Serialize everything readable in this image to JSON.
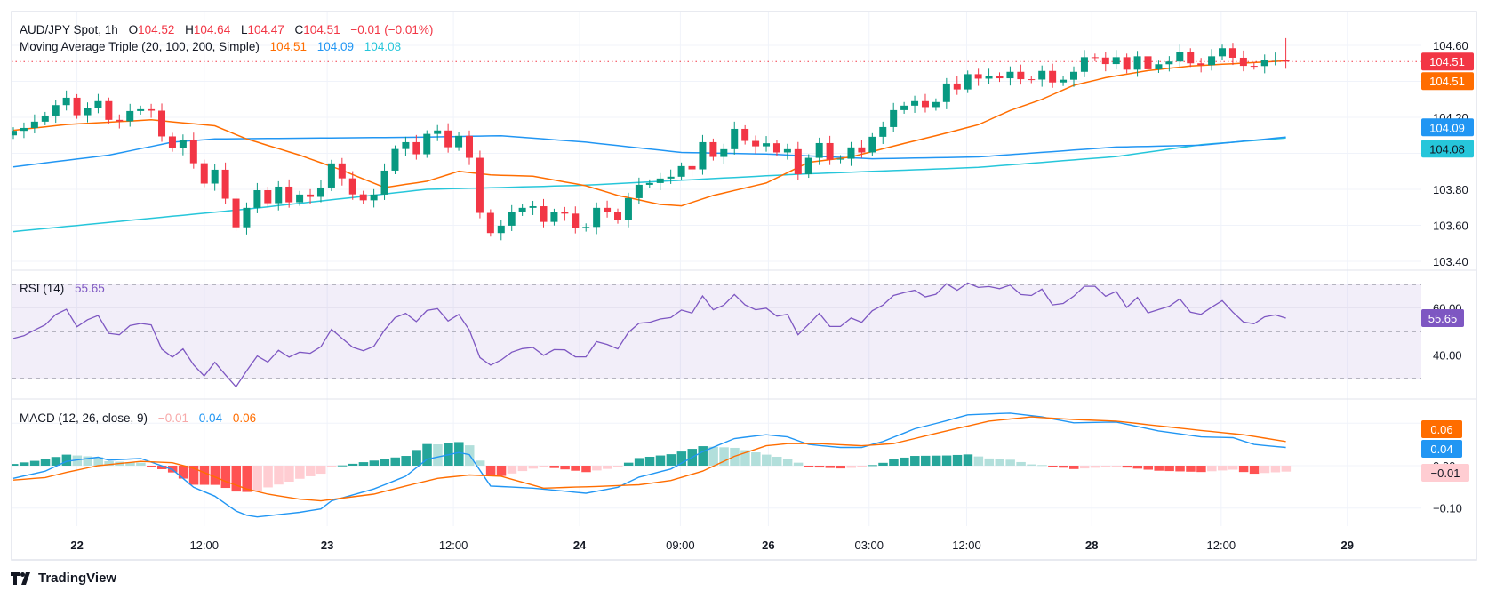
{
  "header": {
    "symbol": "AUD/JPY Spot, 1h",
    "ohlc": [
      {
        "k": "O",
        "v": "104.52"
      },
      {
        "k": "H",
        "v": "104.64"
      },
      {
        "k": "L",
        "v": "104.47"
      },
      {
        "k": "C",
        "v": "104.51"
      }
    ],
    "change": "−0.01 (−0.01%)"
  },
  "ma_legend": {
    "label": "Moving Average Triple (20, 100, 200, Simple)",
    "ma20": "104.51",
    "ma100": "104.09",
    "ma200": "104.08"
  },
  "rsi_legend": {
    "label": "RSI (14)",
    "value": "55.65"
  },
  "macd_legend": {
    "label": "MACD (12, 26, close, 9)",
    "hist": "−0.01",
    "macd": "0.04",
    "signal": "0.06"
  },
  "branding": {
    "name": "TradingView"
  },
  "colors": {
    "up": "#089981",
    "down": "#F23645",
    "ma20": "#FF6D00",
    "ma100": "#2196F3",
    "ma200": "#26C6DA",
    "rsi": "#7E57C2",
    "macd": "#2196F3",
    "signal": "#FF6D00"
  },
  "chart_data": {
    "type": "candlestick",
    "title": "AUD/JPY Spot, 1h",
    "price_ticks": [
      "104.60",
      "104.20",
      "103.80",
      "103.60",
      "103.40"
    ],
    "price_grid": [
      104.6,
      104.4,
      104.2,
      104.0,
      103.8,
      103.6,
      103.4
    ],
    "ylim": [
      103.4,
      104.6
    ],
    "time_labels": [
      {
        "label": "22",
        "at": 6.0,
        "bold": true
      },
      {
        "label": "12:00",
        "at": 18.0
      },
      {
        "label": "23",
        "at": 29.6,
        "bold": true
      },
      {
        "label": "12:00",
        "at": 41.5
      },
      {
        "label": "24",
        "at": 53.4,
        "bold": true
      },
      {
        "label": "09:00",
        "at": 62.9
      },
      {
        "label": "26",
        "at": 71.2,
        "bold": true
      },
      {
        "label": "03:00",
        "at": 80.7
      },
      {
        "label": "12:00",
        "at": 89.9
      },
      {
        "label": "28",
        "at": 101.7,
        "bold": true
      },
      {
        "label": "12:00",
        "at": 113.9
      },
      {
        "label": "29",
        "at": 125.8,
        "bold": true
      }
    ],
    "first_open": 104.1,
    "last_high": 104.64,
    "last_low": 104.47,
    "closes": [
      104.125,
      104.141,
      104.176,
      104.21,
      104.268,
      104.309,
      104.212,
      104.253,
      104.29,
      104.186,
      104.178,
      104.235,
      104.245,
      104.237,
      104.094,
      104.029,
      104.075,
      103.945,
      103.832,
      103.909,
      103.748,
      103.589,
      103.697,
      103.795,
      103.723,
      103.815,
      103.728,
      103.771,
      103.758,
      103.81,
      103.944,
      103.861,
      103.772,
      103.739,
      103.771,
      103.904,
      104.024,
      104.062,
      103.995,
      104.108,
      104.127,
      104.034,
      104.097,
      103.975,
      103.669,
      103.557,
      103.598,
      103.672,
      103.697,
      103.706,
      103.619,
      103.672,
      103.665,
      103.585,
      103.591,
      103.697,
      103.673,
      103.629,
      103.751,
      103.825,
      103.835,
      103.86,
      103.87,
      103.929,
      103.911,
      104.062,
      103.98,
      104.023,
      104.136,
      104.069,
      104.039,
      104.056,
      104.005,
      104.023,
      103.884,
      103.975,
      104.057,
      103.965,
      103.97,
      104.033,
      104.005,
      104.092,
      104.146,
      104.24,
      104.265,
      104.29,
      104.257,
      104.285,
      104.388,
      104.355,
      104.44,
      104.415,
      104.43,
      104.417,
      104.453,
      104.412,
      104.41,
      104.458,
      104.394,
      104.409,
      104.453,
      104.534,
      104.532,
      104.496,
      104.534,
      104.465,
      104.539,
      104.467,
      104.495,
      104.51,
      104.564,
      104.5,
      104.49,
      104.539,
      104.584,
      104.531,
      104.486,
      104.485,
      104.519,
      104.52,
      104.51
    ],
    "ma20_points": [
      [
        1,
        104.128
      ],
      [
        6,
        104.16
      ],
      [
        14,
        104.186
      ],
      [
        20,
        104.153
      ],
      [
        23,
        104.08
      ],
      [
        28,
        103.99
      ],
      [
        32,
        103.906
      ],
      [
        36,
        103.81
      ],
      [
        40,
        103.845
      ],
      [
        43,
        103.9
      ],
      [
        46,
        103.88
      ],
      [
        50,
        103.873
      ],
      [
        55,
        103.82
      ],
      [
        58,
        103.766
      ],
      [
        62,
        103.716
      ],
      [
        64,
        103.708
      ],
      [
        67,
        103.766
      ],
      [
        72,
        103.835
      ],
      [
        76,
        103.95
      ],
      [
        80,
        103.98
      ],
      [
        84,
        104.04
      ],
      [
        89,
        104.113
      ],
      [
        92,
        104.159
      ],
      [
        95,
        104.238
      ],
      [
        98,
        104.3
      ],
      [
        101,
        104.378
      ],
      [
        104,
        104.42
      ],
      [
        108,
        104.46
      ],
      [
        112,
        104.485
      ],
      [
        116,
        104.498
      ],
      [
        121,
        104.514
      ]
    ],
    "ma100_points": [
      [
        1,
        103.925
      ],
      [
        10,
        103.99
      ],
      [
        16,
        104.062
      ],
      [
        20,
        104.08
      ],
      [
        30,
        104.085
      ],
      [
        40,
        104.09
      ],
      [
        47,
        104.098
      ],
      [
        55,
        104.062
      ],
      [
        64,
        104.005
      ],
      [
        72,
        103.996
      ],
      [
        82,
        103.97
      ],
      [
        92,
        103.98
      ],
      [
        105,
        104.035
      ],
      [
        113,
        104.045
      ],
      [
        121,
        104.09
      ]
    ],
    "ma200_points": [
      [
        1,
        103.565
      ],
      [
        23,
        103.69
      ],
      [
        40,
        103.8
      ],
      [
        47,
        103.81
      ],
      [
        55,
        103.823
      ],
      [
        75,
        103.884
      ],
      [
        92,
        103.922
      ],
      [
        105,
        103.982
      ],
      [
        113,
        104.048
      ],
      [
        121,
        104.085
      ]
    ],
    "price_badges": [
      {
        "label": "104.51",
        "value": 104.51,
        "color": "#F23645",
        "offset": 0
      },
      {
        "label": "104.51",
        "value": 104.51,
        "color": "#FF6D00",
        "offset": 22
      },
      {
        "label": "104.09",
        "value": 104.09,
        "color": "#2196F3",
        "offset": -11
      },
      {
        "label": "104.08",
        "value": 104.08,
        "color": "#26C6DA",
        "offset": 11,
        "dark": true
      }
    ],
    "rsi": {
      "values": [
        47.0,
        48.2,
        50.6,
        52.8,
        57.2,
        59.4,
        52.0,
        55.0,
        56.8,
        49.2,
        48.6,
        52.5,
        53.4,
        52.8,
        42.5,
        39.1,
        42.6,
        35.8,
        31.1,
        36.9,
        31.6,
        26.5,
        33.3,
        39.6,
        37.0,
        42.0,
        39.1,
        41.2,
        40.7,
        43.5,
        50.9,
        47.1,
        43.3,
        41.8,
        43.7,
        50.6,
        55.9,
        57.7,
        54.2,
        58.9,
        59.7,
        54.4,
        57.2,
        50.6,
        38.9,
        35.7,
        37.9,
        41.2,
        42.7,
        43.2,
        39.9,
        42.3,
        42.2,
        39.2,
        39.2,
        45.7,
        44.5,
        42.6,
        49.6,
        53.5,
        53.9,
        55.3,
        55.9,
        59.1,
        57.8,
        65.1,
        59.2,
        61.2,
        65.7,
        61.3,
        59.2,
        59.9,
        56.5,
        57.3,
        48.6,
        53.1,
        57.7,
        52.1,
        52.1,
        55.7,
        53.9,
        58.8,
        61.2,
        65.3,
        66.5,
        67.5,
        64.7,
        65.8,
        70.3,
        67.5,
        70.6,
        68.7,
        69.1,
        68.2,
        69.7,
        65.7,
        65.3,
        68.0,
        61.3,
        61.9,
        65.0,
        69.2,
        69.2,
        65.0,
        67.0,
        60.2,
        64.5,
        57.9,
        59.3,
        60.7,
        63.8,
        58.2,
        57.3,
        60.3,
        63.1,
        58.2,
        54.0,
        53.3,
        56.2,
        57.0,
        55.65
      ],
      "bands": [
        70,
        50,
        30
      ],
      "ticks": [
        "60.00",
        "40.00"
      ],
      "tick_values": [
        60,
        40
      ],
      "badge": "55.65"
    },
    "macd": {
      "macd_points": [
        [
          1,
          -0.03
        ],
        [
          4,
          -0.013
        ],
        [
          6,
          0.01
        ],
        [
          9,
          0.02
        ],
        [
          10,
          0.013
        ],
        [
          13,
          0.017
        ],
        [
          16,
          -0.009
        ],
        [
          18,
          -0.051
        ],
        [
          20,
          -0.072
        ],
        [
          22,
          -0.107
        ],
        [
          23,
          -0.117
        ],
        [
          24,
          -0.121
        ],
        [
          28,
          -0.11
        ],
        [
          30,
          -0.102
        ],
        [
          31,
          -0.083
        ],
        [
          35,
          -0.055
        ],
        [
          38,
          -0.025
        ],
        [
          40,
          0.015
        ],
        [
          43,
          0.031
        ],
        [
          44,
          0.026
        ],
        [
          46,
          -0.048
        ],
        [
          50,
          -0.053
        ],
        [
          55,
          -0.065
        ],
        [
          58,
          -0.051
        ],
        [
          60,
          -0.027
        ],
        [
          63,
          -0.008
        ],
        [
          66,
          0.033
        ],
        [
          69,
          0.064
        ],
        [
          72,
          0.073
        ],
        [
          74,
          0.068
        ],
        [
          76,
          0.05
        ],
        [
          79,
          0.043
        ],
        [
          81,
          0.043
        ],
        [
          83,
          0.057
        ],
        [
          86,
          0.087
        ],
        [
          89,
          0.106
        ],
        [
          91,
          0.12
        ],
        [
          95,
          0.124
        ],
        [
          98,
          0.115
        ],
        [
          101,
          0.101
        ],
        [
          105,
          0.103
        ],
        [
          109,
          0.082
        ],
        [
          113,
          0.068
        ],
        [
          116,
          0.066
        ],
        [
          118,
          0.05
        ],
        [
          121,
          0.043
        ]
      ],
      "signal_points": [
        [
          1,
          -0.034
        ],
        [
          4,
          -0.028
        ],
        [
          6,
          -0.016
        ],
        [
          9,
          0.0
        ],
        [
          13,
          0.01
        ],
        [
          16,
          0.007
        ],
        [
          18,
          -0.006
        ],
        [
          21,
          -0.037
        ],
        [
          23,
          -0.055
        ],
        [
          25,
          -0.067
        ],
        [
          28,
          -0.079
        ],
        [
          30,
          -0.083
        ],
        [
          35,
          -0.067
        ],
        [
          38,
          -0.048
        ],
        [
          41,
          -0.03
        ],
        [
          44,
          -0.022
        ],
        [
          47,
          -0.025
        ],
        [
          51,
          -0.053
        ],
        [
          56,
          -0.049
        ],
        [
          60,
          -0.045
        ],
        [
          63,
          -0.035
        ],
        [
          66,
          -0.013
        ],
        [
          69,
          0.022
        ],
        [
          72,
          0.047
        ],
        [
          74,
          0.052
        ],
        [
          77,
          0.052
        ],
        [
          81,
          0.047
        ],
        [
          84,
          0.052
        ],
        [
          89,
          0.082
        ],
        [
          93,
          0.105
        ],
        [
          97,
          0.115
        ],
        [
          101,
          0.109
        ],
        [
          105,
          0.105
        ],
        [
          109,
          0.094
        ],
        [
          113,
          0.083
        ],
        [
          117,
          0.073
        ],
        [
          121,
          0.057
        ]
      ],
      "ticks": [
        "0.00",
        "−0.10"
      ],
      "tick_values": [
        0.0,
        -0.1
      ],
      "badges": [
        {
          "label": "0.06",
          "color": "#FF6D00",
          "kind": "signal"
        },
        {
          "label": "0.04",
          "color": "#2196F3",
          "kind": "macd"
        },
        {
          "label": "−0.01",
          "color": "#FFCDD2",
          "kind": "hist",
          "dark": true
        }
      ]
    }
  }
}
